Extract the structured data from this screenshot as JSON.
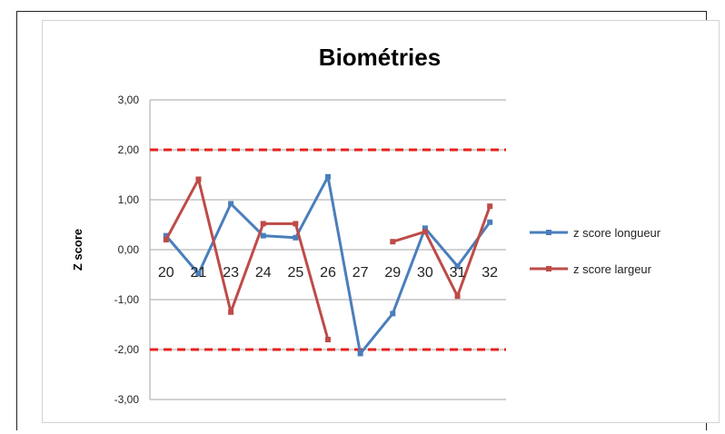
{
  "chart_data": {
    "type": "line",
    "title": "Biométries",
    "ylabel": "Z score",
    "xlabel": "",
    "categories": [
      "20",
      "21",
      "23",
      "24",
      "25",
      "26",
      "27",
      "29",
      "30",
      "31",
      "32"
    ],
    "ylim": [
      -3,
      3
    ],
    "yticks": [
      3,
      2,
      1,
      0,
      -1,
      -2,
      -3
    ],
    "ytick_labels": [
      "3,00",
      "2,00",
      "1,00",
      "0,00",
      "-1,00",
      "-2,00",
      "-3,00"
    ],
    "grid": true,
    "legend_position": "right",
    "reference_lines": [
      {
        "value": 2,
        "color": "#e8211d",
        "style": "dashed"
      },
      {
        "value": -2,
        "color": "#e8211d",
        "style": "dashed"
      }
    ],
    "series": [
      {
        "name": "z score longueur",
        "color": "#4a7ebb",
        "values": [
          0.28,
          -0.48,
          0.92,
          0.28,
          0.24,
          1.46,
          -2.08,
          -1.28,
          0.43,
          -0.33,
          0.55
        ]
      },
      {
        "name": "z score largeur",
        "color": "#be4b48",
        "values": [
          0.2,
          1.41,
          -1.25,
          0.52,
          0.52,
          -1.8,
          null,
          0.16,
          0.36,
          -0.93,
          0.87
        ]
      }
    ]
  }
}
